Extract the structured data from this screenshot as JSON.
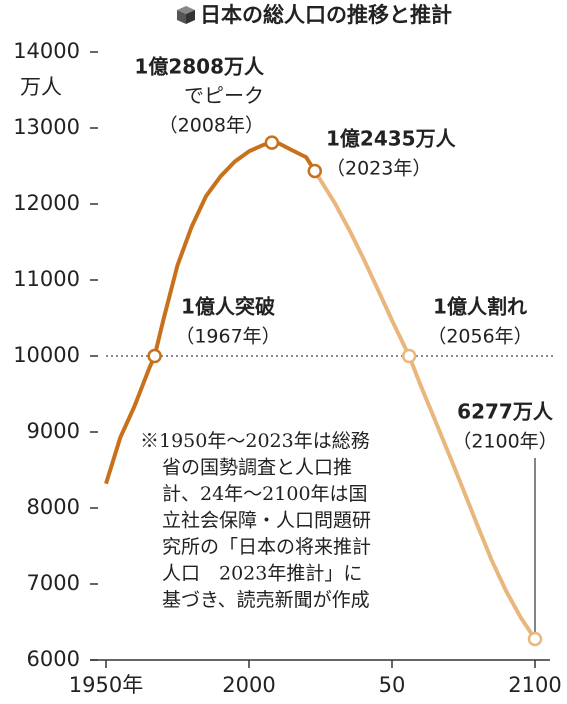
{
  "chart_data": {
    "type": "line",
    "title": "日本の総人口の推移と推計",
    "y_unit": "万人",
    "series": [
      {
        "color": "#c8711c",
        "x": [
          1950,
          1955,
          1960,
          1965,
          1967,
          1970,
          1975,
          1980,
          1985,
          1990,
          1995,
          2000,
          2005,
          2008,
          2010,
          2015,
          2020,
          2023
        ],
        "values": [
          8320,
          8928,
          9342,
          9828,
          10000,
          10467,
          11194,
          11706,
          12105,
          12361,
          12557,
          12693,
          12777,
          12808,
          12806,
          12709,
          12615,
          12435
        ]
      },
      {
        "color": "#e9b77e",
        "x": [
          2023,
          2030,
          2035,
          2040,
          2045,
          2050,
          2056,
          2060,
          2065,
          2070,
          2075,
          2080,
          2085,
          2090,
          2095,
          2100
        ],
        "values": [
          12435,
          12012,
          11664,
          11284,
          10880,
          10469,
          10000,
          9615,
          9159,
          8700,
          8233,
          7760,
          7300,
          6900,
          6560,
          6277
        ]
      }
    ],
    "annotations": [
      {
        "x": 1967,
        "value": 10000,
        "lines": [
          "1億人突破",
          "（1967年）"
        ]
      },
      {
        "x": 2008,
        "value": 12808,
        "lines": [
          "1億2808万人",
          "でピーク",
          "（2008年）"
        ]
      },
      {
        "x": 2023,
        "value": 12435,
        "lines": [
          "1億2435万人",
          "（2023年）"
        ]
      },
      {
        "x": 2056,
        "value": 10000,
        "lines": [
          "1億人割れ",
          "（2056年）"
        ]
      },
      {
        "x": 2100,
        "value": 6277,
        "lines": [
          "6277万人",
          "（2100年）"
        ]
      }
    ],
    "reference_line": 10000,
    "note": [
      "※1950年～2023年は総務",
      "省の国勢調査と人口推",
      "計、24年～2100年は国",
      "立社会保障・人口問題研",
      "究所の「日本の将来推計",
      "人口　2023年推計」に",
      "基づき、読売新聞が作成"
    ],
    "xlim": [
      1950,
      2100
    ],
    "ylim": [
      6000,
      14000
    ],
    "xticks": [
      {
        "value": 1950,
        "label": "1950年"
      },
      2000,
      {
        "value": 2050,
        "label": "50"
      },
      2100
    ],
    "yticks": [
      6000,
      7000,
      8000,
      9000,
      10000,
      11000,
      12000,
      13000,
      14000
    ]
  }
}
